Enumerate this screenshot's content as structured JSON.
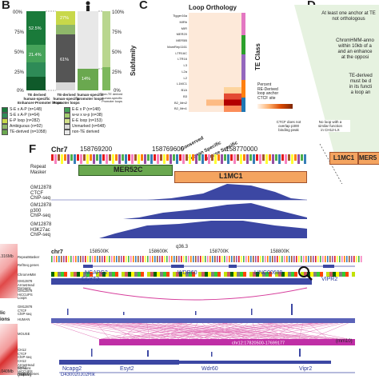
{
  "panels": {
    "b": "B",
    "c": "C",
    "d": "D",
    "f": "F"
  },
  "left_edge": {
    "top_coord": ".316Mb",
    "mid_text": "lic\nions",
    "bottom_coord": ".040Mb"
  },
  "panel_b": {
    "y_left": [
      "00%",
      "75%",
      "50%",
      "25%",
      "0%"
    ],
    "y_right": [
      "100%",
      "75%",
      "50%",
      "25%",
      "0%"
    ],
    "bar_pcts": [
      "52.5%",
      "21.4%",
      "61%",
      "27%",
      "14%",
      "10%"
    ],
    "bar_labels": [
      "TE derived\nhuman-specific\nEnhancer-Promoter loops",
      "TE-derived\nhuman-specific\nPromoter loops",
      "human-specific\npromoter loops",
      "Non-TE derived\nhuman-specific\nPromoter loops"
    ],
    "legend": [
      {
        "label": "S-E x A-P (n=148)",
        "color": "#1a7a3a"
      },
      {
        "label": "E-E x P (n=148)",
        "color": "#46a35a"
      },
      {
        "label": "S-E x A-P (n=64)",
        "color": "#2e8b57"
      },
      {
        "label": "w-w x w-p (n=38)",
        "color": "#a3cc6e"
      },
      {
        "label": "E-P loop (n=282)",
        "color": "#c8d84a"
      },
      {
        "label": "E-E loop (n=153)",
        "color": "#d2e08a"
      },
      {
        "label": "Ambiguous (n=92)",
        "color": "#8fb76a"
      },
      {
        "label": "Unmarked (n=648)",
        "color": "#d9d9d9"
      },
      {
        "label": "TE-derived (n=1058)",
        "color": "#6aa84f"
      },
      {
        "label": "non-TE derived",
        "color": "#e8e8e8"
      }
    ]
  },
  "panel_c": {
    "title": "Loop Orthology",
    "ylabel": "Subfamily",
    "te_class": "TE Class",
    "rows": [
      "Tigger16a",
      "MIRb",
      "MIR",
      "MER20",
      "MER5B",
      "MamRep1161",
      "LTR16C",
      "LTR16",
      "L3",
      "L2a",
      "L2",
      "L1MC1",
      "B1A",
      "B3",
      "B2_Mm2",
      "B2_Mm1"
    ],
    "columns": [
      "Conserved",
      "Human Specific",
      "Mouse Specific"
    ],
    "legend_title": "Percent\nRE-Derived\nloop anchor\nCTCF site",
    "class_colors": [
      "#e377c2",
      "#2ca02c",
      "#9467bd",
      "#ff7f0e",
      "#1f77b4"
    ]
  },
  "panel_d": {
    "box1": "At least one anchor at TE\nnot orthologous",
    "box2": "ChromHMM-anno\nwithin 10kb of a\nand an enhance\nat the opposi",
    "box3": "TE-derived\nmust be d\nin its functi\na loop an",
    "side1": "CTCF does not\noverlap p300\nbinding peak",
    "side2": "No loop with a\nsimilar function\nin CH12-LX",
    "tag1": "L1MC1",
    "tag2": "MER5"
  },
  "panel_f": {
    "chrom": "Chr7",
    "ticks_top": [
      "158769200",
      "158769600",
      "158770000"
    ],
    "repeat_masker": "Repeat\nMasker",
    "rep_names": [
      "MER52C",
      "L1MC1"
    ],
    "tracks_top": [
      "GM12878\nCTCF\nChIP-seq",
      "GM12878\np300\nChIP-seq",
      "GM12878\nH3K27ac\nChIP-seq"
    ],
    "cytoband": "q36.3",
    "chrom2": "chr7",
    "ticks_mid": [
      "158500K",
      "158600K",
      "158700K",
      "158800K"
    ],
    "tracks_mid": [
      "RepeatMasker",
      "RefSeq genes",
      "ChromHMM",
      "GM12878\nArrowHead\nDomains",
      "GM12878\nHiCCUPS\nLoops",
      "GM12878\nCTCF\nChIP-seq",
      "HUMAN",
      "MOUSE",
      "CH12\nCTCF\nChIP-seq",
      "CH12\nArrowHead\nDomains",
      "CH12\nHiCCUPS\nLoops",
      "RefSeq genes"
    ],
    "genes_human": [
      "NCAPG2",
      "ESYT2",
      "WDR60",
      "LINC00689",
      "VIPR2"
    ],
    "genes_mouse": [
      "Ncapg2",
      "D430020J02Rik",
      "Esyt2",
      "Wdr60",
      "Vipr2"
    ],
    "mouse_chrom": "chr12:17820500-17699177",
    "mm10": "(mm10)",
    "bottom_left": "(mm9)"
  }
}
